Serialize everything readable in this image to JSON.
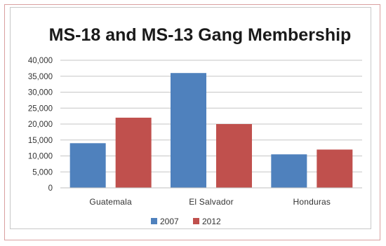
{
  "chart_data": {
    "type": "bar",
    "title": "MS-18 and MS-13 Gang Membership",
    "categories": [
      "Guatemala",
      "El Salvador",
      "Honduras"
    ],
    "series": [
      {
        "name": "2007",
        "values": [
          14000,
          36000,
          10500
        ],
        "color": "#4f81bd"
      },
      {
        "name": "2012",
        "values": [
          22000,
          20000,
          12000
        ],
        "color": "#c0504d"
      }
    ],
    "y_ticks": [
      "0",
      "5,000",
      "10,000",
      "15,000",
      "20,000",
      "25,000",
      "30,000",
      "35,000",
      "40,000"
    ],
    "ylim": [
      0,
      40000
    ],
    "y_step": 5000,
    "grid": true,
    "legend_position": "bottom"
  }
}
